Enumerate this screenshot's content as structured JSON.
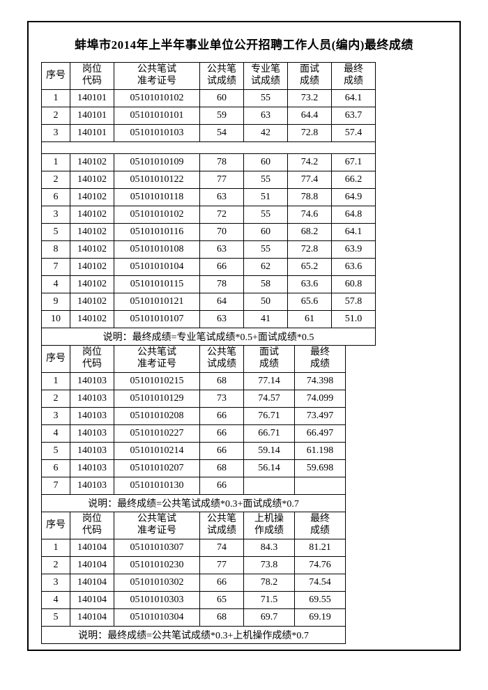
{
  "title": "蚌埠市2014年上半年事业单位公开招聘工作人员(编内)最终成绩",
  "table1": {
    "headers": [
      "序号",
      "岗位\n代码",
      "公共笔试\n准考证号",
      "公共笔\n试成绩",
      "专业笔\n试成绩",
      "面试\n成绩",
      "最终\n成绩"
    ],
    "rows_a": [
      [
        "1",
        "140101",
        "05101010102",
        "60",
        "55",
        "73.2",
        "64.1"
      ],
      [
        "2",
        "140101",
        "05101010101",
        "59",
        "63",
        "64.4",
        "63.7"
      ],
      [
        "3",
        "140101",
        "05101010103",
        "54",
        "42",
        "72.8",
        "57.4"
      ]
    ],
    "rows_b": [
      [
        "1",
        "140102",
        "05101010109",
        "78",
        "60",
        "74.2",
        "67.1"
      ],
      [
        "2",
        "140102",
        "05101010122",
        "77",
        "55",
        "77.4",
        "66.2"
      ],
      [
        "6",
        "140102",
        "05101010118",
        "63",
        "51",
        "78.8",
        "64.9"
      ],
      [
        "3",
        "140102",
        "05101010102",
        "72",
        "55",
        "74.6",
        "64.8"
      ],
      [
        "5",
        "140102",
        "05101010116",
        "70",
        "60",
        "68.2",
        "64.1"
      ],
      [
        "8",
        "140102",
        "05101010108",
        "63",
        "55",
        "72.8",
        "63.9"
      ],
      [
        "7",
        "140102",
        "05101010104",
        "66",
        "62",
        "65.2",
        "63.6"
      ],
      [
        "4",
        "140102",
        "05101010115",
        "78",
        "58",
        "63.6",
        "60.8"
      ],
      [
        "9",
        "140102",
        "05101010121",
        "64",
        "50",
        "65.6",
        "57.8"
      ],
      [
        "10",
        "140102",
        "05101010107",
        "63",
        "41",
        "61",
        "51.0"
      ]
    ],
    "formula": "说明：最终成绩=专业笔试成绩*0.5+面试成绩*0.5"
  },
  "table2": {
    "headers": [
      "序号",
      "岗位\n代码",
      "公共笔试\n准考证号",
      "公共笔\n试成绩",
      "面试\n成绩",
      "最终\n成绩"
    ],
    "rows": [
      [
        "1",
        "140103",
        "05101010215",
        "68",
        "77.14",
        "74.398"
      ],
      [
        "2",
        "140103",
        "05101010129",
        "73",
        "74.57",
        "74.099"
      ],
      [
        "3",
        "140103",
        "05101010208",
        "66",
        "76.71",
        "73.497"
      ],
      [
        "4",
        "140103",
        "05101010227",
        "66",
        "66.71",
        "66.497"
      ],
      [
        "5",
        "140103",
        "05101010214",
        "66",
        "59.14",
        "61.198"
      ],
      [
        "6",
        "140103",
        "05101010207",
        "68",
        "56.14",
        "59.698"
      ],
      [
        "7",
        "140103",
        "05101010130",
        "66",
        "",
        ""
      ]
    ],
    "formula": "说明：最终成绩=公共笔试成绩*0.3+面试成绩*0.7"
  },
  "table3": {
    "headers": [
      "序号",
      "岗位\n代码",
      "公共笔试\n准考证号",
      "公共笔\n试成绩",
      "上机操\n作成绩",
      "最终\n成绩"
    ],
    "rows": [
      [
        "1",
        "140104",
        "05101010307",
        "74",
        "84.3",
        "81.21"
      ],
      [
        "2",
        "140104",
        "05101010230",
        "77",
        "73.8",
        "74.76"
      ],
      [
        "3",
        "140104",
        "05101010302",
        "66",
        "78.2",
        "74.54"
      ],
      [
        "4",
        "140104",
        "05101010303",
        "65",
        "71.5",
        "69.55"
      ],
      [
        "5",
        "140104",
        "05101010304",
        "68",
        "69.7",
        "69.19"
      ]
    ],
    "formula": "说明：最终成绩=公共笔试成绩*0.3+上机操作成绩*0.7"
  },
  "colors": {
    "border": "#000000",
    "background": "#ffffff",
    "text": "#000000"
  }
}
